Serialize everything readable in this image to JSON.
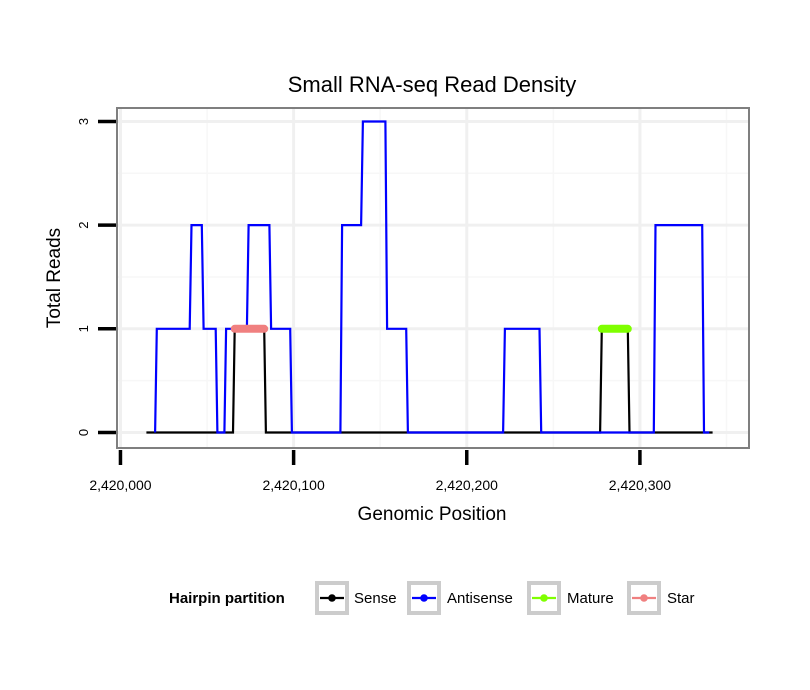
{
  "chart_data": {
    "type": "line",
    "title": "Small RNA-seq Read Density",
    "xlabel": "Genomic Position",
    "ylabel": "Total Reads",
    "xlim": [
      2419998,
      2420363
    ],
    "ylim": [
      -0.15,
      3.13
    ],
    "x_ticks": [
      2420000,
      2420100,
      2420200,
      2420300
    ],
    "x_tick_labels": [
      "2,420,000",
      "2,420,100",
      "2,420,200",
      "2,420,300"
    ],
    "y_ticks": [
      0,
      1,
      2,
      3
    ],
    "y_tick_labels": [
      "0",
      "1",
      "2",
      "3"
    ],
    "grid": true,
    "legend": {
      "title": "Hairpin partition",
      "position": "bottom",
      "entries": [
        "Sense",
        "Antisense",
        "Mature",
        "Star"
      ]
    },
    "series": [
      {
        "name": "Sense",
        "color": "#000000",
        "x": [
          2420015,
          2420065,
          2420066,
          2420083,
          2420084,
          2420277,
          2420278,
          2420293,
          2420294,
          2420342
        ],
        "y": [
          0,
          0,
          1,
          1,
          0,
          0,
          1,
          1,
          0,
          0
        ]
      },
      {
        "name": "Antisense",
        "color": "#0000FF",
        "x": [
          2420020,
          2420021,
          2420040,
          2420041,
          2420047,
          2420048,
          2420055,
          2420056,
          2420060,
          2420061,
          2420073,
          2420074,
          2420086,
          2420087,
          2420098,
          2420099,
          2420127,
          2420128,
          2420139,
          2420140,
          2420153,
          2420154,
          2420165,
          2420166,
          2420221,
          2420222,
          2420242,
          2420243,
          2420308,
          2420309,
          2420336,
          2420337,
          2420340
        ],
        "y": [
          0,
          1,
          1,
          2,
          2,
          1,
          1,
          0,
          0,
          1,
          1,
          2,
          2,
          1,
          1,
          0,
          0,
          2,
          2,
          3,
          3,
          1,
          1,
          0,
          0,
          1,
          1,
          0,
          0,
          2,
          2,
          0,
          0
        ]
      },
      {
        "name": "Mature",
        "color": "#7FFF00",
        "x": [
          2420278,
          2420293
        ],
        "y": [
          1,
          1
        ]
      },
      {
        "name": "Star",
        "color": "#F08080",
        "x": [
          2420066,
          2420083
        ],
        "y": [
          1,
          1
        ]
      }
    ]
  }
}
